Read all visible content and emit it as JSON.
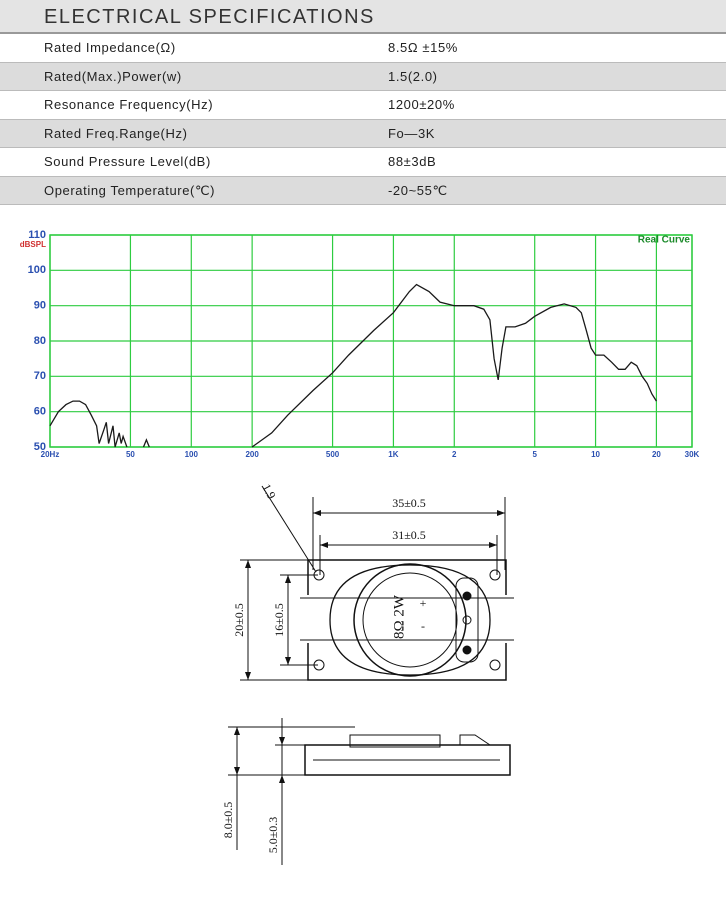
{
  "table": {
    "title": "ELECTRICAL SPECIFICATIONS",
    "rows": [
      [
        "Rated Impedance(Ω)",
        "8.5Ω ±15%"
      ],
      [
        "Rated(Max.)Power(w)",
        "1.5(2.0)"
      ],
      [
        "Resonance Frequency(Hz)",
        "1200±20%"
      ],
      [
        "Rated Freq.Range(Hz)",
        "Fo—3K"
      ],
      [
        "Sound Pressure Level(dB)",
        "88±3dB"
      ],
      [
        "Operating Temperature(℃)",
        "-20~55℃"
      ]
    ]
  },
  "chart_data": {
    "type": "line",
    "legend_text": "Real Curve",
    "ylabel": "dBSPL",
    "x_scale": "log",
    "grid": true,
    "color": "#1a1a1a",
    "grid_color": "#2ecc40",
    "xlim": [
      20,
      30000
    ],
    "ylim": [
      50,
      110
    ],
    "xticks": [
      {
        "value": 20,
        "label": "20Hz"
      },
      50,
      100,
      200,
      500,
      {
        "value": 1000,
        "label": "1K"
      },
      {
        "value": 2000,
        "label": "2"
      },
      {
        "value": 5000,
        "label": "5"
      },
      {
        "value": 10000,
        "label": "10"
      },
      {
        "value": 20000,
        "label": "20"
      },
      {
        "value": 30000,
        "label": "30K"
      }
    ],
    "yticks": [
      50,
      60,
      70,
      80,
      90,
      100,
      110
    ],
    "series": [
      {
        "name": "Real Curve",
        "x": [
          20,
          22,
          24,
          26,
          28,
          30,
          32,
          34,
          35,
          37,
          38,
          39,
          41,
          42,
          44,
          45,
          46,
          48,
          50,
          58,
          60,
          62,
          100,
          200,
          250,
          300,
          400,
          500,
          600,
          800,
          1000,
          1200,
          1300,
          1500,
          1700,
          2000,
          2500,
          2800,
          3000,
          3150,
          3300,
          3450,
          3600,
          4000,
          4500,
          5000,
          6000,
          7000,
          8000,
          8500,
          9000,
          9500,
          10000,
          11000,
          12000,
          13000,
          14000,
          15000,
          16000,
          17000,
          18000,
          19000,
          20000
        ],
        "values": [
          56,
          60,
          62,
          63,
          63,
          62,
          59,
          56,
          51,
          55,
          57,
          51,
          56,
          50,
          54,
          51,
          53,
          50,
          null,
          50,
          52,
          50,
          null,
          50,
          54,
          59,
          66,
          71,
          76,
          83,
          88,
          94,
          96,
          94,
          91,
          90,
          90,
          89,
          86,
          75,
          69,
          78,
          84,
          84,
          85,
          87,
          89.5,
          90.5,
          89.5,
          88,
          83,
          78,
          76,
          76,
          74,
          72,
          72,
          74,
          73,
          70,
          68,
          65,
          63
        ]
      }
    ]
  },
  "drawing": {
    "labels": {
      "hole_dia": "1.9",
      "outer_length": "35±0.5",
      "hole_pitch_x": "31±0.5",
      "outer_width": "20±0.5",
      "hole_pitch_y": "16±0.5",
      "rating": "8Ω 2W",
      "plus": "+",
      "minus": "-",
      "height": "8.0±0.5",
      "body_height": "5.0±0.3"
    }
  }
}
